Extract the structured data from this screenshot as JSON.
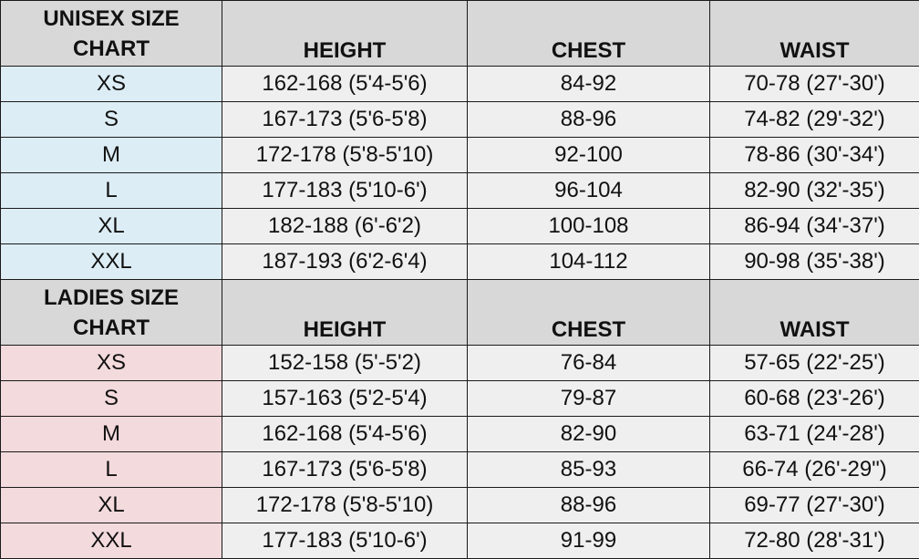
{
  "colors": {
    "header_bg": "#d8d8d8",
    "cell_bg": "#efefef",
    "unisex_size_bg": "#dcedf5",
    "ladies_size_bg": "#f3dadd",
    "border": "#1a1a1a"
  },
  "unisex": {
    "title_line1": "UNISEX SIZE",
    "title_line2": "CHART",
    "headers": [
      "HEIGHT",
      "CHEST",
      "WAIST"
    ],
    "rows": [
      {
        "size": "XS",
        "height": "162-168 (5'4-5'6)",
        "chest": "84-92",
        "waist": "70-78 (27'-30')"
      },
      {
        "size": "S",
        "height": "167-173 (5'6-5'8)",
        "chest": "88-96",
        "waist": "74-82 (29'-32')"
      },
      {
        "size": "M",
        "height": "172-178 (5'8-5'10)",
        "chest": "92-100",
        "waist": "78-86 (30'-34')"
      },
      {
        "size": "L",
        "height": "177-183 (5'10-6')",
        "chest": "96-104",
        "waist": "82-90 (32'-35')"
      },
      {
        "size": "XL",
        "height": "182-188 (6'-6'2)",
        "chest": "100-108",
        "waist": "86-94 (34'-37')"
      },
      {
        "size": "XXL",
        "height": "187-193 (6'2-6'4)",
        "chest": "104-112",
        "waist": "90-98 (35'-38')"
      }
    ]
  },
  "ladies": {
    "title_line1": "LADIES SIZE",
    "title_line2": "CHART",
    "headers": [
      "HEIGHT",
      "CHEST",
      "WAIST"
    ],
    "rows": [
      {
        "size": "XS",
        "height": "152-158 (5'-5'2)",
        "chest": "76-84",
        "waist": "57-65 (22'-25')"
      },
      {
        "size": "S",
        "height": "157-163 (5'2-5'4)",
        "chest": "79-87",
        "waist": "60-68 (23'-26')"
      },
      {
        "size": "M",
        "height": "162-168 (5'4-5'6)",
        "chest": "82-90",
        "waist": "63-71 (24'-28')"
      },
      {
        "size": "L",
        "height": "167-173 (5'6-5'8)",
        "chest": "85-93",
        "waist": "66-74 (26'-29\")"
      },
      {
        "size": "XL",
        "height": "172-178 (5'8-5'10)",
        "chest": "88-96",
        "waist": "69-77 (27'-30')"
      },
      {
        "size": "XXL",
        "height": "177-183 (5'10-6')",
        "chest": "91-99",
        "waist": "72-80 (28'-31')"
      }
    ]
  }
}
